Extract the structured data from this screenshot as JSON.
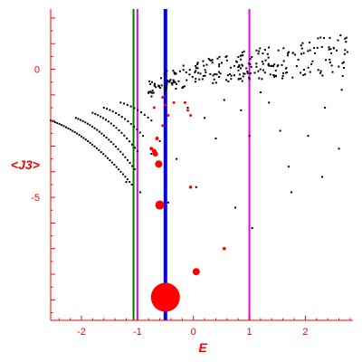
{
  "chart_data": {
    "type": "scatter",
    "title": "",
    "xlabel": "E",
    "ylabel": "<J3>",
    "xlim": [
      -2.55,
      2.85
    ],
    "ylim": [
      -9.8,
      2.35
    ],
    "x_ticks": [
      -2,
      -1,
      0,
      1,
      2
    ],
    "y_ticks": [
      0,
      -5
    ],
    "colors": {
      "axis": "#ff0000",
      "black_points": "#000000",
      "red_points": "#ff0000",
      "line_green": "#007700",
      "line_magenta": "#ee00ee",
      "line_blue": "#0000ff"
    },
    "vertical_lines": [
      {
        "x": -1.07,
        "color": "#007700",
        "width": 2
      },
      {
        "x": -1.0,
        "color": "#ee00ee",
        "width": 2
      },
      {
        "x": -0.5,
        "color": "#0000ff",
        "width": 4
      },
      {
        "x": 1.0,
        "color": "#ee00ee",
        "width": 2
      }
    ],
    "black_branches": [
      {
        "x_start": -2.55,
        "x_end": -1.1,
        "y_start": -2.0,
        "y_end": -4.5,
        "count": 38
      },
      {
        "x_start": -2.1,
        "x_end": -1.05,
        "y_start": -1.9,
        "y_end": -3.9,
        "count": 26
      },
      {
        "x_start": -1.8,
        "x_end": -1.0,
        "y_start": -1.7,
        "y_end": -3.2,
        "count": 18
      },
      {
        "x_start": -1.6,
        "x_end": -0.9,
        "y_start": -1.5,
        "y_end": -2.6,
        "count": 14
      },
      {
        "x_start": -1.3,
        "x_end": -0.75,
        "y_start": -1.3,
        "y_end": -2.0,
        "count": 10
      }
    ],
    "black_cloud": {
      "x_start": -0.8,
      "x_end": 2.85,
      "y_low": -1.2,
      "y_high": 1.2,
      "count": 260,
      "seed": 7
    },
    "black_sparse": [
      [
        -1.2,
        -4.4
      ],
      [
        -0.95,
        -4.8
      ],
      [
        -0.75,
        -3.3
      ],
      [
        -0.6,
        -2.8
      ],
      [
        -0.45,
        -5.2
      ],
      [
        -0.3,
        -3.5
      ],
      [
        0.05,
        -4.6
      ],
      [
        0.4,
        -2.7
      ],
      [
        0.75,
        -5.4
      ],
      [
        1.0,
        -2.6
      ],
      [
        1.05,
        -6.2
      ],
      [
        1.35,
        -1.3
      ],
      [
        1.55,
        -2.4
      ],
      [
        1.7,
        -3.8
      ],
      [
        1.75,
        -4.8
      ],
      [
        2.05,
        -2.6
      ],
      [
        2.3,
        -4.2
      ],
      [
        2.35,
        -1.5
      ],
      [
        2.6,
        -3.1
      ],
      [
        2.65,
        -0.8
      ],
      [
        -0.1,
        -1.5
      ],
      [
        0.2,
        -1.9
      ],
      [
        0.55,
        -1.2
      ],
      [
        0.85,
        -1.6
      ],
      [
        1.2,
        -0.9
      ]
    ],
    "red_points": [
      {
        "x": -0.5,
        "y": -8.9,
        "r": 16
      },
      {
        "x": -0.6,
        "y": -5.3,
        "r": 5
      },
      {
        "x": -0.62,
        "y": -3.7,
        "r": 4
      },
      {
        "x": 0.05,
        "y": -7.9,
        "r": 4
      },
      {
        "x": -0.68,
        "y": -3.3,
        "r": 3
      },
      {
        "x": -0.7,
        "y": -3.2,
        "r": 2.5
      },
      {
        "x": -0.75,
        "y": -3.1,
        "r": 2
      },
      {
        "x": -0.65,
        "y": -2.7,
        "r": 2
      },
      {
        "x": -0.55,
        "y": -2.2,
        "r": 1.5
      },
      {
        "x": -0.45,
        "y": -1.8,
        "r": 1.5
      },
      {
        "x": -0.5,
        "y": -1.4,
        "r": 1.5
      },
      {
        "x": -0.7,
        "y": -1.5,
        "r": 1.5
      },
      {
        "x": -0.55,
        "y": -1.1,
        "r": 1.5
      },
      {
        "x": -0.35,
        "y": -1.3,
        "r": 1.5
      },
      {
        "x": -0.1,
        "y": -1.6,
        "r": 1.5
      },
      {
        "x": -0.05,
        "y": -1.8,
        "r": 1.5
      },
      {
        "x": -0.15,
        "y": -1.3,
        "r": 1.5
      },
      {
        "x": -0.05,
        "y": -4.6,
        "r": 1.8
      },
      {
        "x": 0.55,
        "y": -7.0,
        "r": 1.8
      }
    ]
  }
}
